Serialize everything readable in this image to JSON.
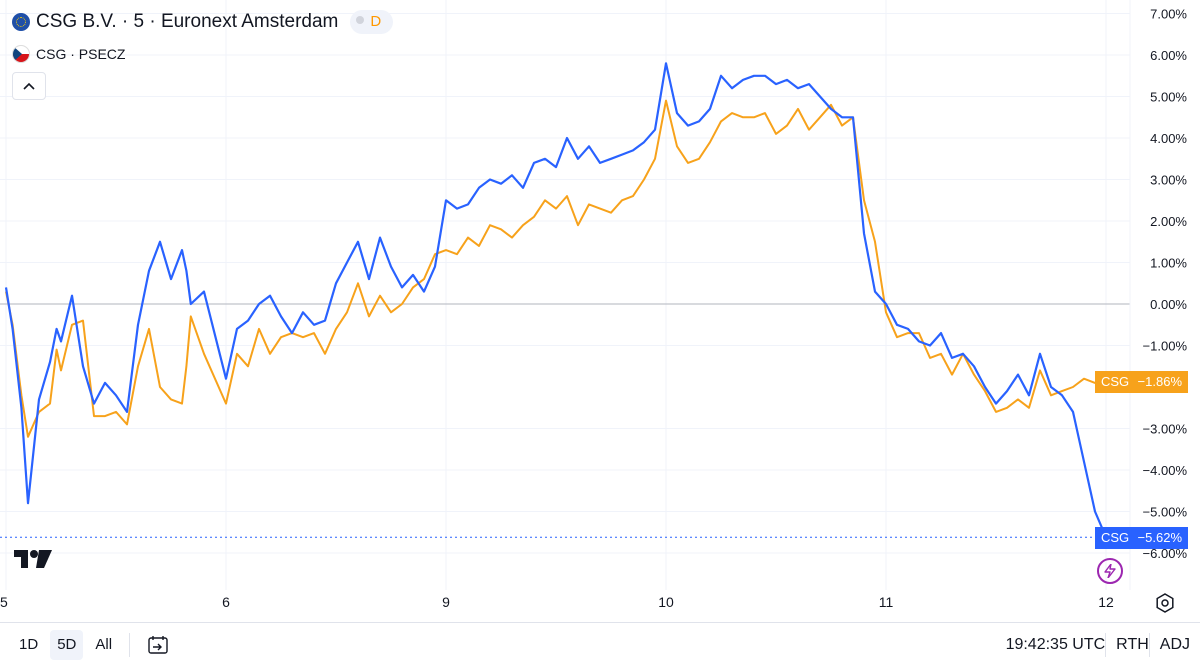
{
  "legend": {
    "main_symbol": "CSG B.V. · 5 · Euronext Amsterdam",
    "interval_badge": "D",
    "compare_symbol": "CSG · PSECZ"
  },
  "colors": {
    "blue_series": "#2962ff",
    "orange_series": "#f7a21b",
    "zero_line": "#b2b5be",
    "grid": "#f0f3fa"
  },
  "icons": {
    "collapse": "chevron-up-icon",
    "logo": "tradingview-logo",
    "bolt": "lightning-icon",
    "settings": "gear-icon",
    "calendar": "calendar-goto-icon"
  },
  "price_tags": {
    "orange": {
      "label": "CSG",
      "value": "−1.86%"
    },
    "blue": {
      "label": "CSG",
      "value": "−5.62%"
    }
  },
  "toolbar": {
    "tf_1d": "1D",
    "tf_5d": "5D",
    "tf_all": "All",
    "time": "19:42:35 UTC",
    "rth": "RTH",
    "adj": "ADJ"
  },
  "chart_data": {
    "type": "line",
    "y_ticks": [
      "7.00%",
      "6.00%",
      "5.00%",
      "4.00%",
      "3.00%",
      "2.00%",
      "1.00%",
      "0.00%",
      "−1.00%",
      "−3.00%",
      "−4.00%",
      "−5.00%",
      "−6.00%"
    ],
    "y_tick_values": [
      7,
      6,
      5,
      4,
      3,
      2,
      1,
      0,
      -1,
      -3,
      -4,
      -5,
      -6
    ],
    "x_ticks": [
      "5",
      "6",
      "9",
      "10",
      "11",
      "12"
    ],
    "x_tick_values": [
      0,
      1,
      2,
      3,
      4,
      5
    ],
    "ylim": [
      -6.4,
      7.3
    ],
    "xlim": [
      0,
      5.2
    ],
    "series": [
      {
        "name": "CSG · PSECZ",
        "color": "#f7a21b",
        "x": [
          0,
          0.03,
          0.07,
          0.1,
          0.15,
          0.2,
          0.23,
          0.25,
          0.3,
          0.35,
          0.4,
          0.45,
          0.5,
          0.55,
          0.6,
          0.65,
          0.7,
          0.75,
          0.8,
          0.82,
          0.84,
          0.9,
          1,
          1.05,
          1.1,
          1.15,
          1.2,
          1.25,
          1.3,
          1.35,
          1.4,
          1.45,
          1.5,
          1.55,
          1.6,
          1.65,
          1.7,
          1.75,
          1.8,
          1.85,
          1.9,
          1.95,
          2,
          2.05,
          2.1,
          2.15,
          2.2,
          2.25,
          2.3,
          2.35,
          2.4,
          2.45,
          2.5,
          2.55,
          2.6,
          2.65,
          2.7,
          2.75,
          2.8,
          2.85,
          2.9,
          2.95,
          3,
          3.05,
          3.1,
          3.15,
          3.2,
          3.25,
          3.3,
          3.35,
          3.4,
          3.45,
          3.5,
          3.55,
          3.6,
          3.65,
          3.7,
          3.75,
          3.8,
          3.85,
          3.9,
          3.95,
          4,
          4.05,
          4.1,
          4.15,
          4.2,
          4.25,
          4.3,
          4.35,
          4.4,
          4.45,
          4.5,
          4.55,
          4.6,
          4.65,
          4.7,
          4.75,
          4.8,
          4.85,
          4.9,
          4.95,
          4.99
        ],
        "y": [
          0.3,
          -0.5,
          -2.2,
          -3.2,
          -2.6,
          -2.4,
          -1.1,
          -1.6,
          -0.5,
          -0.4,
          -2.7,
          -2.7,
          -2.6,
          -2.9,
          -1.5,
          -0.6,
          -2.0,
          -2.3,
          -2.4,
          -1.5,
          -0.3,
          -1.2,
          -2.4,
          -1.2,
          -1.5,
          -0.6,
          -1.2,
          -0.8,
          -0.7,
          -0.8,
          -0.7,
          -1.2,
          -0.6,
          -0.2,
          0.5,
          -0.3,
          0.2,
          -0.2,
          0.0,
          0.4,
          0.6,
          1.2,
          1.3,
          1.2,
          1.6,
          1.4,
          1.9,
          1.8,
          1.6,
          1.9,
          2.1,
          2.5,
          2.3,
          2.6,
          1.9,
          2.4,
          2.3,
          2.2,
          2.5,
          2.6,
          3.0,
          3.5,
          4.9,
          3.8,
          3.4,
          3.5,
          3.9,
          4.4,
          4.6,
          4.5,
          4.5,
          4.6,
          4.1,
          4.3,
          4.7,
          4.2,
          4.5,
          4.8,
          4.3,
          4.5,
          2.5,
          1.5,
          -0.2,
          -0.8,
          -0.7,
          -0.7,
          -1.3,
          -1.2,
          -1.7,
          -1.2,
          -1.7,
          -2.1,
          -2.6,
          -2.5,
          -2.3,
          -2.5,
          -1.6,
          -2.2,
          -2.1,
          -2.0,
          -1.8,
          -1.9,
          -1.86
        ]
      },
      {
        "name": "CSG B.V. · 5 · Euronext Amsterdam",
        "color": "#2962ff",
        "x": [
          0,
          0.03,
          0.07,
          0.1,
          0.15,
          0.2,
          0.23,
          0.25,
          0.3,
          0.35,
          0.4,
          0.45,
          0.5,
          0.55,
          0.6,
          0.65,
          0.7,
          0.75,
          0.8,
          0.82,
          0.84,
          0.9,
          1,
          1.05,
          1.1,
          1.15,
          1.2,
          1.25,
          1.3,
          1.35,
          1.4,
          1.45,
          1.5,
          1.55,
          1.6,
          1.65,
          1.7,
          1.75,
          1.8,
          1.85,
          1.9,
          1.95,
          2,
          2.05,
          2.1,
          2.15,
          2.2,
          2.25,
          2.3,
          2.35,
          2.4,
          2.45,
          2.5,
          2.55,
          2.6,
          2.65,
          2.7,
          2.75,
          2.8,
          2.85,
          2.9,
          2.95,
          3,
          3.05,
          3.1,
          3.15,
          3.2,
          3.25,
          3.3,
          3.35,
          3.4,
          3.45,
          3.5,
          3.55,
          3.6,
          3.65,
          3.7,
          3.75,
          3.8,
          3.85,
          3.9,
          3.95,
          4,
          4.05,
          4.1,
          4.15,
          4.2,
          4.25,
          4.3,
          4.35,
          4.4,
          4.45,
          4.5,
          4.55,
          4.6,
          4.65,
          4.7,
          4.75,
          4.8,
          4.85,
          4.9,
          4.95,
          5.0
        ],
        "y": [
          0.4,
          -0.6,
          -2.5,
          -4.8,
          -2.3,
          -1.4,
          -0.6,
          -0.9,
          0.2,
          -1.5,
          -2.4,
          -1.9,
          -2.2,
          -2.6,
          -0.5,
          0.8,
          1.5,
          0.6,
          1.3,
          0.8,
          0.0,
          0.3,
          -1.8,
          -0.6,
          -0.4,
          0.0,
          0.2,
          -0.3,
          -0.7,
          -0.2,
          -0.5,
          -0.4,
          0.5,
          1.0,
          1.5,
          0.6,
          1.6,
          0.9,
          0.4,
          0.7,
          0.3,
          0.9,
          2.5,
          2.3,
          2.4,
          2.8,
          3.0,
          2.9,
          3.1,
          2.8,
          3.4,
          3.5,
          3.3,
          4.0,
          3.5,
          3.8,
          3.4,
          3.5,
          3.6,
          3.7,
          3.9,
          4.2,
          5.8,
          4.6,
          4.3,
          4.4,
          4.7,
          5.5,
          5.2,
          5.4,
          5.5,
          5.5,
          5.3,
          5.4,
          5.2,
          5.3,
          5.0,
          4.7,
          4.5,
          4.5,
          1.7,
          0.3,
          0.0,
          -0.5,
          -0.6,
          -0.9,
          -1.0,
          -0.7,
          -1.3,
          -1.2,
          -1.5,
          -2.0,
          -2.4,
          -2.1,
          -1.7,
          -2.2,
          -1.2,
          -2.0,
          -2.2,
          -2.6,
          -3.8,
          -5.0,
          -5.62
        ]
      }
    ]
  }
}
